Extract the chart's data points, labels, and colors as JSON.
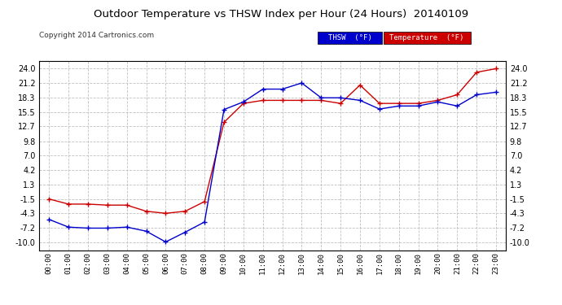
{
  "title": "Outdoor Temperature vs THSW Index per Hour (24 Hours)  20140109",
  "copyright": "Copyright 2014 Cartronics.com",
  "x_labels": [
    "00:00",
    "01:00",
    "02:00",
    "03:00",
    "04:00",
    "05:00",
    "06:00",
    "07:00",
    "08:00",
    "09:00",
    "10:00",
    "11:00",
    "12:00",
    "13:00",
    "14:00",
    "15:00",
    "16:00",
    "17:00",
    "18:00",
    "19:00",
    "20:00",
    "21:00",
    "22:00",
    "23:00"
  ],
  "y_ticks": [
    -10.0,
    -7.2,
    -4.3,
    -1.5,
    1.3,
    4.2,
    7.0,
    9.8,
    12.7,
    15.5,
    18.3,
    21.2,
    24.0
  ],
  "ylim": [
    -11.5,
    25.5
  ],
  "temperature": [
    -1.5,
    -2.5,
    -2.5,
    -2.7,
    -2.7,
    -3.9,
    -4.3,
    -3.9,
    -2.0,
    13.5,
    17.2,
    17.8,
    17.8,
    17.8,
    17.8,
    17.2,
    20.8,
    17.2,
    17.2,
    17.2,
    17.8,
    18.9,
    23.3,
    24.0
  ],
  "thsw": [
    -5.5,
    -7.0,
    -7.2,
    -7.2,
    -7.0,
    -7.8,
    -9.9,
    -8.0,
    -6.0,
    16.0,
    17.5,
    20.0,
    20.0,
    21.2,
    18.3,
    18.3,
    17.8,
    16.1,
    16.7,
    16.7,
    17.5,
    16.7,
    18.9,
    19.4
  ],
  "temp_color": "#cc0000",
  "thsw_color": "#0000cc",
  "bg_color": "#ffffff",
  "grid_color": "#c0c0c0",
  "legend_thsw_bg": "#0000cc",
  "legend_temp_bg": "#cc0000",
  "legend_text_color": "#ffffff"
}
